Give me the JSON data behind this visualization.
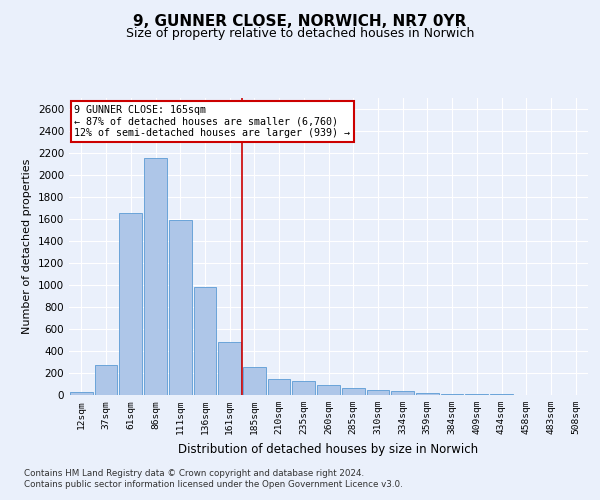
{
  "title": "9, GUNNER CLOSE, NORWICH, NR7 0YR",
  "subtitle": "Size of property relative to detached houses in Norwich",
  "xlabel": "Distribution of detached houses by size in Norwich",
  "ylabel": "Number of detached properties",
  "bin_labels": [
    "12sqm",
    "37sqm",
    "61sqm",
    "86sqm",
    "111sqm",
    "136sqm",
    "161sqm",
    "185sqm",
    "210sqm",
    "235sqm",
    "260sqm",
    "285sqm",
    "310sqm",
    "334sqm",
    "359sqm",
    "384sqm",
    "409sqm",
    "434sqm",
    "458sqm",
    "483sqm",
    "508sqm"
  ],
  "bar_values": [
    30,
    270,
    1650,
    2150,
    1590,
    980,
    480,
    250,
    145,
    130,
    90,
    60,
    45,
    35,
    20,
    10,
    5,
    5,
    3,
    3,
    2
  ],
  "bar_color": "#aec6e8",
  "bar_edge_color": "#5b9bd5",
  "annotation_text": "9 GUNNER CLOSE: 165sqm\n← 87% of detached houses are smaller (6,760)\n12% of semi-detached houses are larger (939) →",
  "annotation_box_color": "#ffffff",
  "annotation_box_edge_color": "#cc0000",
  "vline_color": "#cc0000",
  "vline_x": 6.5,
  "ylim": [
    0,
    2700
  ],
  "yticks": [
    0,
    200,
    400,
    600,
    800,
    1000,
    1200,
    1400,
    1600,
    1800,
    2000,
    2200,
    2400,
    2600
  ],
  "footer_line1": "Contains HM Land Registry data © Crown copyright and database right 2024.",
  "footer_line2": "Contains public sector information licensed under the Open Government Licence v3.0.",
  "background_color": "#eaf0fb",
  "plot_bg_color": "#eaf0fb",
  "grid_color": "#ffffff",
  "title_fontsize": 11,
  "subtitle_fontsize": 9
}
